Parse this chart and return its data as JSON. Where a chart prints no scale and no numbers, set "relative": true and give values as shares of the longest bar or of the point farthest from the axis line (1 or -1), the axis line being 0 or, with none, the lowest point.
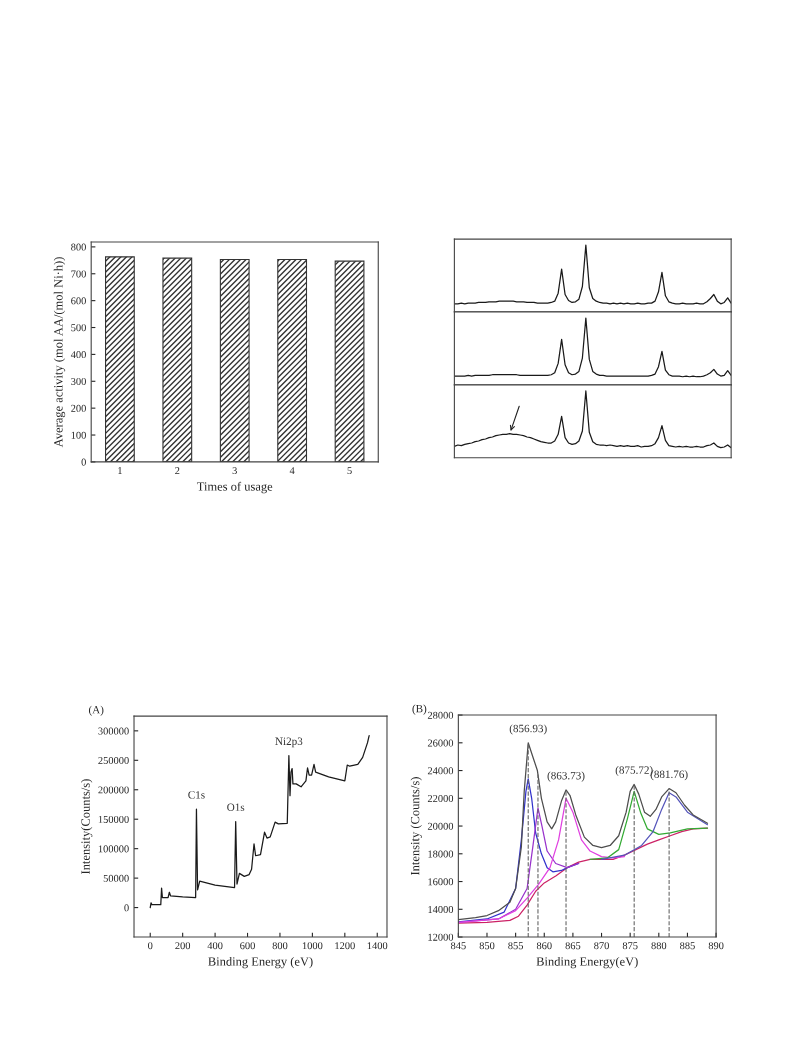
{
  "chart_data": [
    {
      "type": "bar",
      "categories": [
        "1",
        "2",
        "3",
        "4",
        "5"
      ],
      "values": [
        763,
        758,
        753,
        753,
        747
      ],
      "color": "#333333",
      "xlabel": "Times of usage",
      "ylabel": "Average activity (mol AA/(mol Ni·h))",
      "ylim": [
        0,
        818
      ],
      "yticks": [
        0,
        100,
        200,
        300,
        400,
        500,
        600,
        700,
        800
      ],
      "grid": false
    },
    {
      "type": "line",
      "relative": true,
      "tick_labels": false,
      "categories": [
        null,
        null,
        null,
        null,
        null,
        null,
        null,
        null,
        null,
        null,
        null,
        null,
        null,
        null,
        null,
        null,
        null,
        null,
        null,
        null,
        null,
        null,
        null,
        null,
        null,
        null,
        null,
        null,
        null,
        null,
        null,
        null,
        null,
        null,
        null,
        null,
        null,
        null,
        null,
        null,
        null,
        null,
        null,
        null,
        null,
        null,
        null,
        null,
        null,
        null,
        null,
        null,
        null,
        null,
        null,
        null,
        null,
        null,
        null,
        null,
        null,
        null,
        null,
        null,
        null,
        null,
        null,
        null,
        null,
        null,
        null,
        null,
        null,
        null,
        null,
        null,
        null,
        null,
        null,
        null,
        null
      ],
      "series": [
        {
          "color": "#1a1a1a",
          "values": [
            0.12,
            0.12,
            0.13,
            0.12,
            0.13,
            0.13,
            0.13,
            0.14,
            0.14,
            0.14,
            0.15,
            0.15,
            0.15,
            0.16,
            0.16,
            0.16,
            0.16,
            0.16,
            0.15,
            0.15,
            0.15,
            0.14,
            0.14,
            0.14,
            0.13,
            0.13,
            0.13,
            0.13,
            0.14,
            0.16,
            0.28,
            0.64,
            0.26,
            0.17,
            0.14,
            0.15,
            0.19,
            0.38,
            1.0,
            0.36,
            0.2,
            0.16,
            0.14,
            0.13,
            0.13,
            0.12,
            0.13,
            0.12,
            0.13,
            0.12,
            0.13,
            0.12,
            0.12,
            0.13,
            0.12,
            0.12,
            0.13,
            0.13,
            0.16,
            0.3,
            0.59,
            0.24,
            0.15,
            0.13,
            0.12,
            0.12,
            0.13,
            0.12,
            0.12,
            0.12,
            0.13,
            0.12,
            0.12,
            0.15,
            0.2,
            0.26,
            0.16,
            0.12,
            0.14,
            0.21,
            0.13
          ]
        }
      ]
    },
    {
      "type": "line",
      "relative": true,
      "tick_labels": false,
      "categories": [
        null,
        null,
        null,
        null,
        null,
        null,
        null,
        null,
        null,
        null,
        null,
        null,
        null,
        null,
        null,
        null,
        null,
        null,
        null,
        null,
        null,
        null,
        null,
        null,
        null,
        null,
        null,
        null,
        null,
        null,
        null,
        null,
        null,
        null,
        null,
        null,
        null,
        null,
        null,
        null,
        null,
        null,
        null,
        null,
        null,
        null,
        null,
        null,
        null,
        null,
        null,
        null,
        null,
        null,
        null,
        null,
        null,
        null,
        null,
        null,
        null,
        null,
        null,
        null,
        null,
        null,
        null,
        null,
        null,
        null,
        null,
        null,
        null,
        null,
        null,
        null,
        null,
        null,
        null,
        null,
        null
      ],
      "series": [
        {
          "color": "#1a1a1a",
          "values": [
            0.13,
            0.13,
            0.13,
            0.13,
            0.14,
            0.13,
            0.14,
            0.14,
            0.14,
            0.14,
            0.14,
            0.15,
            0.15,
            0.15,
            0.15,
            0.15,
            0.15,
            0.15,
            0.15,
            0.14,
            0.14,
            0.14,
            0.14,
            0.14,
            0.14,
            0.14,
            0.14,
            0.14,
            0.15,
            0.18,
            0.32,
            0.68,
            0.3,
            0.18,
            0.15,
            0.16,
            0.2,
            0.4,
            1.0,
            0.38,
            0.2,
            0.16,
            0.14,
            0.14,
            0.13,
            0.13,
            0.13,
            0.13,
            0.13,
            0.13,
            0.13,
            0.13,
            0.13,
            0.13,
            0.13,
            0.13,
            0.13,
            0.14,
            0.16,
            0.27,
            0.5,
            0.22,
            0.15,
            0.13,
            0.13,
            0.13,
            0.12,
            0.13,
            0.12,
            0.13,
            0.12,
            0.12,
            0.13,
            0.15,
            0.18,
            0.23,
            0.16,
            0.13,
            0.14,
            0.21,
            0.14
          ]
        }
      ]
    },
    {
      "type": "line",
      "relative": true,
      "tick_labels": false,
      "categories": [
        null,
        null,
        null,
        null,
        null,
        null,
        null,
        null,
        null,
        null,
        null,
        null,
        null,
        null,
        null,
        null,
        null,
        null,
        null,
        null,
        null,
        null,
        null,
        null,
        null,
        null,
        null,
        null,
        null,
        null,
        null,
        null,
        null,
        null,
        null,
        null,
        null,
        null,
        null,
        null,
        null,
        null,
        null,
        null,
        null,
        null,
        null,
        null,
        null,
        null,
        null,
        null,
        null,
        null,
        null,
        null,
        null,
        null,
        null,
        null,
        null,
        null,
        null,
        null,
        null,
        null,
        null,
        null,
        null,
        null,
        null,
        null,
        null,
        null,
        null,
        null,
        null,
        null,
        null,
        null,
        null
      ],
      "series": [
        {
          "color": "#1a1a1a",
          "values": [
            0.17,
            0.19,
            0.18,
            0.2,
            0.21,
            0.22,
            0.24,
            0.25,
            0.27,
            0.28,
            0.3,
            0.31,
            0.33,
            0.34,
            0.35,
            0.35,
            0.36,
            0.35,
            0.35,
            0.34,
            0.33,
            0.31,
            0.3,
            0.28,
            0.26,
            0.24,
            0.23,
            0.22,
            0.22,
            0.25,
            0.35,
            0.62,
            0.3,
            0.22,
            0.2,
            0.21,
            0.25,
            0.4,
            1.0,
            0.38,
            0.24,
            0.2,
            0.19,
            0.19,
            0.18,
            0.19,
            0.18,
            0.17,
            0.18,
            0.17,
            0.18,
            0.17,
            0.17,
            0.18,
            0.16,
            0.17,
            0.17,
            0.18,
            0.21,
            0.3,
            0.48,
            0.26,
            0.18,
            0.17,
            0.16,
            0.17,
            0.16,
            0.17,
            0.16,
            0.16,
            0.17,
            0.16,
            0.16,
            0.18,
            0.19,
            0.22,
            0.17,
            0.15,
            0.16,
            0.19,
            0.15
          ]
        }
      ]
    },
    {
      "type": "line",
      "title": "(A)",
      "xlabel": "Binding Energy (eV)",
      "ylabel": "Intensity(Counts/s)",
      "xlim": [
        -100,
        1460
      ],
      "xticks": [
        0,
        200,
        400,
        600,
        800,
        1000,
        1200,
        1400
      ],
      "ylim": [
        -50000,
        325000
      ],
      "yticks": [
        0,
        50000,
        100000,
        150000,
        200000,
        250000,
        300000
      ],
      "annotations": [
        {
          "text": "C1s",
          "x": 285,
          "y": 167000
        },
        {
          "text": "O1s",
          "x": 527,
          "y": 146000
        },
        {
          "text": "Ni2p3",
          "x": 855,
          "y": 258000
        }
      ],
      "series": [
        {
          "color": "#1a1a1a",
          "x": [
            0,
            5,
            10,
            65,
            70,
            75,
            110,
            118,
            125,
            200,
            280,
            285,
            292,
            305,
            400,
            520,
            527,
            535,
            550,
            580,
            610,
            625,
            640,
            650,
            680,
            705,
            720,
            740,
            770,
            790,
            845,
            855,
            862,
            868,
            875,
            880,
            900,
            930,
            960,
            970,
            980,
            995,
            1010,
            1020,
            1100,
            1200,
            1215,
            1230,
            1280,
            1310,
            1340,
            1350
          ],
          "values": [
            0,
            8000,
            5000,
            5000,
            33000,
            17000,
            17000,
            26000,
            20000,
            18000,
            17000,
            167000,
            30000,
            45000,
            38000,
            34000,
            146000,
            40000,
            58000,
            53000,
            56000,
            65000,
            108000,
            88000,
            90000,
            128000,
            118000,
            120000,
            145000,
            142000,
            143000,
            258000,
            190000,
            230000,
            236000,
            210000,
            210000,
            205000,
            215000,
            237000,
            225000,
            225000,
            243000,
            230000,
            222000,
            215000,
            242000,
            240000,
            243000,
            255000,
            280000,
            292000
          ]
        }
      ]
    },
    {
      "type": "line",
      "title": "(B)",
      "xlabel": "Binding Energy(eV)",
      "ylabel": "Intensity (Counts/s)",
      "xlim": [
        845,
        890
      ],
      "xticks": [
        845,
        850,
        855,
        860,
        865,
        870,
        875,
        880,
        885,
        890
      ],
      "ylim": [
        12000,
        28000
      ],
      "yticks": [
        12000,
        14000,
        16000,
        18000,
        20000,
        22000,
        24000,
        26000,
        28000
      ],
      "annotations": [
        {
          "text": "(856.93)",
          "x": 857.2,
          "y": 26000
        },
        {
          "text": "(863.73)",
          "x": 863.8,
          "y": 22600
        },
        {
          "text": "(875.72)",
          "x": 875.7,
          "y": 23000
        },
        {
          "text": "(881.76)",
          "x": 881.8,
          "y": 22700
        }
      ],
      "ref_lines": [
        {
          "axis": "x",
          "value": 857.2,
          "line_style": "dashed",
          "color": "#666666"
        },
        {
          "axis": "x",
          "value": 858.9,
          "line_style": "dashed",
          "color": "#666666"
        },
        {
          "axis": "x",
          "value": 863.8,
          "line_style": "dashed",
          "color": "#666666"
        },
        {
          "axis": "x",
          "value": 875.7,
          "line_style": "dashed",
          "color": "#666666"
        },
        {
          "axis": "x",
          "value": 881.8,
          "line_style": "dashed",
          "color": "#666666"
        }
      ],
      "series": [
        {
          "color": "#cc2266",
          "x": [
            845,
            850,
            854,
            855.5,
            857,
            858.5,
            860,
            862,
            864,
            866,
            868,
            872,
            874,
            876,
            878,
            880,
            882,
            884,
            886,
            888.5
          ],
          "values": [
            13000,
            13050,
            13200,
            13500,
            14300,
            15300,
            15900,
            16400,
            17000,
            17400,
            17600,
            17600,
            17900,
            18300,
            18700,
            19000,
            19300,
            19600,
            19800,
            19850
          ]
        },
        {
          "color": "#3333cc",
          "x": [
            845,
            850,
            853,
            855,
            856,
            856.8,
            857.2,
            857.8,
            858.5,
            859.5,
            860.5,
            861.5,
            863,
            864,
            866
          ],
          "values": [
            13100,
            13300,
            13800,
            15500,
            19000,
            22500,
            23400,
            22000,
            19500,
            18000,
            17000,
            16700,
            16800,
            17000,
            17300
          ]
        },
        {
          "color": "#9933cc",
          "x": [
            845,
            852,
            855,
            857,
            858,
            858.9,
            859.6,
            860.5,
            862,
            864,
            866
          ],
          "values": [
            13050,
            13300,
            14000,
            15500,
            18500,
            21300,
            20000,
            18200,
            17300,
            17000,
            17300
          ]
        },
        {
          "color": "#e040e0",
          "x": [
            845,
            852,
            855,
            857,
            859,
            861,
            862.5,
            863.8,
            865,
            866.5,
            868,
            870,
            872,
            874
          ],
          "values": [
            13050,
            13300,
            13900,
            14800,
            15800,
            17000,
            19000,
            22000,
            21000,
            19000,
            18200,
            17800,
            17700,
            17800
          ]
        },
        {
          "color": "#33aa33",
          "x": [
            868,
            871,
            873,
            874.5,
            875.7,
            876.8,
            878,
            880,
            882,
            885,
            888.5
          ],
          "values": [
            17600,
            17700,
            18300,
            20500,
            22500,
            21000,
            19800,
            19400,
            19500,
            19800,
            19850
          ]
        },
        {
          "color": "#5555bb",
          "x": [
            870,
            874,
            877,
            879,
            880.5,
            881.8,
            883,
            885,
            888.5
          ],
          "values": [
            17600,
            17900,
            18600,
            19600,
            21200,
            22400,
            22100,
            21000,
            20100
          ]
        },
        {
          "color": "#4d4d4d",
          "x": [
            845,
            848,
            850,
            852,
            854,
            855,
            856,
            856.5,
            857.2,
            858,
            858.8,
            859.5,
            860.5,
            861.3,
            862,
            863,
            863.8,
            864.5,
            865.5,
            867,
            868.5,
            870,
            871.5,
            873,
            874.3,
            875,
            875.7,
            876.5,
            877.5,
            878.5,
            879.5,
            880.5,
            881.8,
            883,
            884.5,
            886,
            888.5
          ],
          "values": [
            13250,
            13400,
            13550,
            13900,
            14500,
            15500,
            18500,
            22500,
            26000,
            25000,
            24000,
            22000,
            20300,
            19800,
            20300,
            21800,
            22600,
            22200,
            20800,
            19200,
            18600,
            18450,
            18600,
            19300,
            21000,
            22500,
            23000,
            22300,
            21000,
            20700,
            21200,
            22100,
            22700,
            22400,
            21500,
            20800,
            20200
          ]
        }
      ]
    }
  ]
}
